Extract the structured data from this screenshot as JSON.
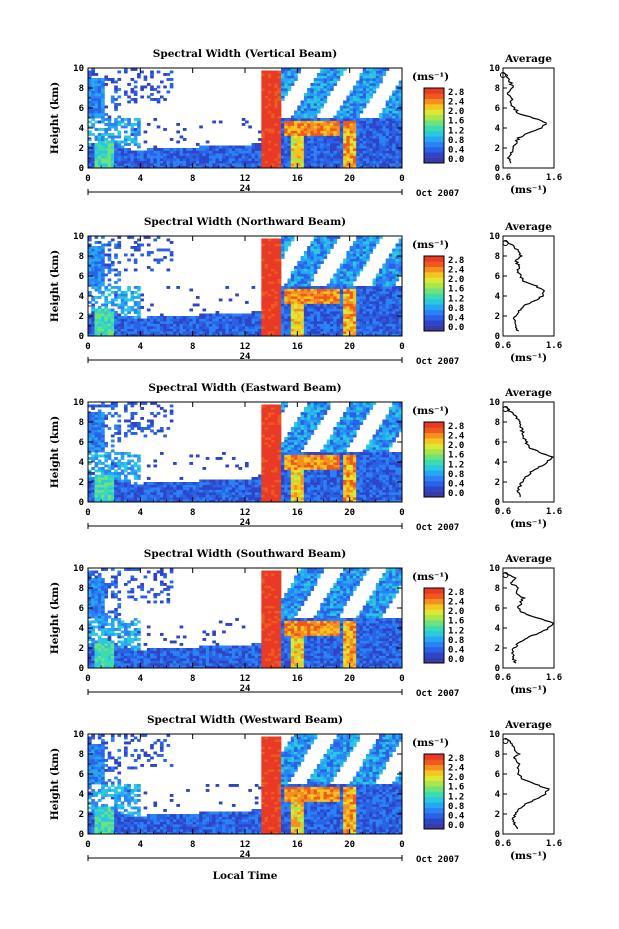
{
  "figure": {
    "xlabel_bottom": "Local Time"
  },
  "colorbar": {
    "unit_label": "(ms⁻¹)",
    "ticks": [
      "2.8",
      "2.4",
      "2.0",
      "1.6",
      "1.2",
      "0.8",
      "0.4",
      "0.0"
    ],
    "colors": [
      "#3a3aa6",
      "#2f45c7",
      "#2a62e6",
      "#2a82f5",
      "#25a8f3",
      "#2bc8e0",
      "#3ddcb0",
      "#6ee27c",
      "#a8e64c",
      "#dce833",
      "#f5c520",
      "#f59020",
      "#ee5a1e",
      "#e83a26"
    ]
  },
  "date_label": "Oct 2007",
  "day_label": "24",
  "average_title": "Average",
  "average_xlabel": "(ms⁻¹)",
  "chart_data": [
    {
      "type": "heatmap",
      "title": "Spectral Width (Vertical Beam)",
      "xlabel": "Local Time",
      "ylabel": "Height (km)",
      "xlim": [
        0,
        24
      ],
      "xticks": [
        "0",
        "4",
        "8",
        "12",
        "16",
        "20",
        "0"
      ],
      "ylim": [
        0,
        10
      ],
      "yticks": [
        "0",
        "2",
        "4",
        "6",
        "8",
        "10"
      ],
      "z_unit": "ms⁻¹",
      "zlim": [
        0,
        3.0
      ],
      "profile": {
        "title": "Average",
        "xlim": [
          0.6,
          1.6
        ],
        "xticks": [
          "0.6",
          "1.6"
        ],
        "heights": [
          0.5,
          1,
          1.5,
          2,
          2.5,
          3,
          3.5,
          4,
          4.5,
          5,
          5.5,
          6,
          6.5,
          7,
          7.5,
          8,
          8.5,
          9,
          9.5
        ],
        "values": [
          0.78,
          0.72,
          0.76,
          0.8,
          0.85,
          0.9,
          1.1,
          1.35,
          1.45,
          1.2,
          0.9,
          0.82,
          0.75,
          0.78,
          0.7,
          0.8,
          0.75,
          0.72,
          0.6
        ]
      }
    },
    {
      "type": "heatmap",
      "title": "Spectral Width (Northward Beam)",
      "xlabel": "Local Time",
      "ylabel": "Height (km)",
      "xlim": [
        0,
        24
      ],
      "xticks": [
        "0",
        "4",
        "8",
        "12",
        "16",
        "20",
        "0"
      ],
      "ylim": [
        0,
        10
      ],
      "yticks": [
        "0",
        "2",
        "4",
        "6",
        "8",
        "10"
      ],
      "z_unit": "ms⁻¹",
      "zlim": [
        0,
        3.0
      ],
      "profile": {
        "title": "Average",
        "xlim": [
          0.6,
          1.6
        ],
        "xticks": [
          "0.6",
          "1.6"
        ],
        "heights": [
          0.5,
          1,
          1.5,
          2,
          2.5,
          3,
          3.5,
          4,
          4.5,
          5,
          5.5,
          6,
          6.5,
          7,
          7.5,
          8,
          8.5,
          9,
          9.5
        ],
        "values": [
          0.9,
          0.85,
          0.82,
          0.84,
          0.9,
          1.0,
          1.2,
          1.38,
          1.42,
          1.25,
          1.0,
          0.95,
          0.88,
          0.92,
          0.85,
          0.95,
          0.9,
          0.8,
          0.65
        ]
      }
    },
    {
      "type": "heatmap",
      "title": "Spectral Width (Eastward Beam)",
      "xlabel": "Local Time",
      "ylabel": "Height (km)",
      "xlim": [
        0,
        24
      ],
      "xticks": [
        "0",
        "4",
        "8",
        "12",
        "16",
        "20",
        "0"
      ],
      "ylim": [
        0,
        10
      ],
      "yticks": [
        "0",
        "2",
        "4",
        "6",
        "8",
        "10"
      ],
      "z_unit": "ms⁻¹",
      "zlim": [
        0,
        3.0
      ],
      "profile": {
        "title": "Average",
        "xlim": [
          0.6,
          1.6
        ],
        "xticks": [
          "0.6",
          "1.6"
        ],
        "heights": [
          0.5,
          1,
          1.5,
          2,
          2.5,
          3,
          3.5,
          4,
          4.5,
          5,
          5.5,
          6,
          6.5,
          7,
          7.5,
          8,
          8.5,
          9,
          9.5
        ],
        "values": [
          0.95,
          0.9,
          0.92,
          0.98,
          1.05,
          1.15,
          1.3,
          1.48,
          1.55,
          1.3,
          1.1,
          1.05,
          1.0,
          0.98,
          0.95,
          0.92,
          0.85,
          0.75,
          0.65
        ]
      }
    },
    {
      "type": "heatmap",
      "title": "Spectral Width (Southward Beam)",
      "xlabel": "Local Time",
      "ylabel": "Height (km)",
      "xlim": [
        0,
        24
      ],
      "xticks": [
        "0",
        "4",
        "8",
        "12",
        "16",
        "20",
        "0"
      ],
      "ylim": [
        0,
        10
      ],
      "yticks": [
        "0",
        "2",
        "4",
        "6",
        "8",
        "10"
      ],
      "z_unit": "ms⁻¹",
      "zlim": [
        0,
        3.0
      ],
      "profile": {
        "title": "Average",
        "xlim": [
          0.6,
          1.6
        ],
        "xticks": [
          "0.6",
          "1.6"
        ],
        "heights": [
          0.5,
          1,
          1.5,
          2,
          2.5,
          3,
          3.5,
          4,
          4.5,
          5,
          5.5,
          6,
          6.5,
          7,
          7.5,
          8,
          8.5,
          9,
          9.5
        ],
        "values": [
          0.85,
          0.8,
          0.78,
          0.82,
          0.9,
          1.05,
          1.3,
          1.5,
          1.58,
          1.3,
          1.0,
          0.9,
          0.95,
          1.0,
          0.85,
          0.92,
          0.75,
          0.82,
          0.65
        ]
      }
    },
    {
      "type": "heatmap",
      "title": "Spectral Width (Westward Beam)",
      "xlabel": "Local Time",
      "ylabel": "Height (km)",
      "xlim": [
        0,
        24
      ],
      "xticks": [
        "0",
        "4",
        "8",
        "12",
        "16",
        "20",
        "0"
      ],
      "ylim": [
        0,
        10
      ],
      "yticks": [
        "0",
        "2",
        "4",
        "6",
        "8",
        "10"
      ],
      "z_unit": "ms⁻¹",
      "zlim": [
        0,
        3.0
      ],
      "profile": {
        "title": "Average",
        "xlim": [
          0.6,
          1.6
        ],
        "xticks": [
          "0.6",
          "1.6"
        ],
        "heights": [
          0.5,
          1,
          1.5,
          2,
          2.5,
          3,
          3.5,
          4,
          4.5,
          5,
          5.5,
          6,
          6.5,
          7,
          7.5,
          8,
          8.5,
          9,
          9.5
        ],
        "values": [
          0.88,
          0.82,
          0.8,
          0.84,
          0.92,
          1.05,
          1.25,
          1.42,
          1.48,
          1.22,
          0.98,
          0.9,
          0.88,
          0.92,
          0.82,
          0.9,
          0.8,
          0.78,
          0.65
        ]
      }
    }
  ]
}
